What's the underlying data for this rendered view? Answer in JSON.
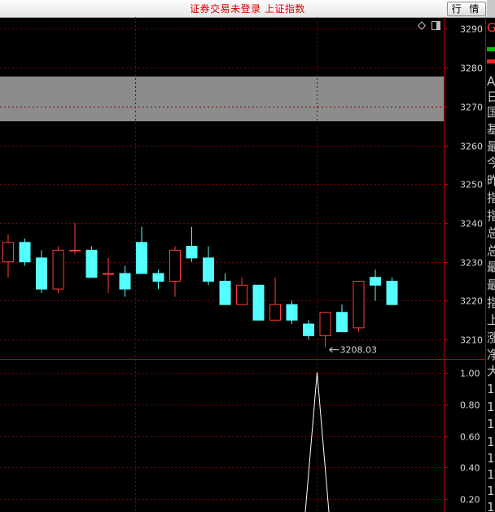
{
  "window": {
    "title": "证券交易未登录  上证指数",
    "quote_button": "行 情"
  },
  "colors": {
    "up": "#ff3c3c",
    "down": "#54ffff",
    "axis": "#c00000",
    "grid": "#7a0000",
    "label": "#d8d8d8",
    "band": "#8c8c8c",
    "indicator_line": "#ffffff"
  },
  "icons": [
    "diamond-icon",
    "panel-toggle-icon"
  ],
  "chart_data": [
    {
      "type": "candlestick",
      "y_ticks": [
        "3290",
        "3280",
        "3270",
        "3260",
        "3250",
        "3240",
        "3230",
        "3220",
        "3210"
      ],
      "ylim": [
        3205,
        3293
      ],
      "annotation": "3208.03",
      "candles": [
        {
          "o": 3230,
          "h": 3237,
          "l": 3226,
          "c": 3235
        },
        {
          "o": 3235,
          "h": 3236,
          "l": 3229,
          "c": 3230
        },
        {
          "o": 3231,
          "h": 3233,
          "l": 3222,
          "c": 3223
        },
        {
          "o": 3223,
          "h": 3234,
          "l": 3222,
          "c": 3233
        },
        {
          "o": 3233,
          "h": 3240,
          "l": 3232,
          "c": 3233
        },
        {
          "o": 3233,
          "h": 3234,
          "l": 3226,
          "c": 3226
        },
        {
          "o": 3227,
          "h": 3231,
          "l": 3222,
          "c": 3227
        },
        {
          "o": 3227,
          "h": 3229,
          "l": 3221,
          "c": 3223
        },
        {
          "o": 3235,
          "h": 3239,
          "l": 3227,
          "c": 3227
        },
        {
          "o": 3227,
          "h": 3228,
          "l": 3223,
          "c": 3225
        },
        {
          "o": 3225,
          "h": 3234,
          "l": 3221,
          "c": 3233
        },
        {
          "o": 3234,
          "h": 3239,
          "l": 3230,
          "c": 3231
        },
        {
          "o": 3231,
          "h": 3234,
          "l": 3224,
          "c": 3225
        },
        {
          "o": 3225,
          "h": 3227,
          "l": 3219,
          "c": 3219
        },
        {
          "o": 3219,
          "h": 3226,
          "l": 3219,
          "c": 3224
        },
        {
          "o": 3224,
          "h": 3224,
          "l": 3215,
          "c": 3215
        },
        {
          "o": 3215,
          "h": 3226,
          "l": 3215,
          "c": 3219
        },
        {
          "o": 3219,
          "h": 3220,
          "l": 3214,
          "c": 3215
        },
        {
          "o": 3214,
          "h": 3215,
          "l": 3210,
          "c": 3211
        },
        {
          "o": 3211,
          "h": 3217,
          "l": 3208,
          "c": 3217
        },
        {
          "o": 3217,
          "h": 3219,
          "l": 3212,
          "c": 3212
        },
        {
          "o": 3213,
          "h": 3225,
          "l": 3212,
          "c": 3225
        },
        {
          "o": 3226,
          "h": 3228,
          "l": 3220,
          "c": 3224
        },
        {
          "o": 3225,
          "h": 3226,
          "l": 3219,
          "c": 3219
        }
      ]
    },
    {
      "type": "line",
      "y_ticks": [
        "1.00",
        "0.80",
        "0.60",
        "0.40",
        "0.20"
      ],
      "ylim": [
        0.12,
        1.08
      ],
      "x": [
        0,
        1,
        2
      ],
      "values": [
        0.12,
        1.0,
        0.12
      ]
    }
  ],
  "side_text": [
    "G",
    "A",
    "日",
    "国",
    "基",
    "最",
    "今",
    "昨",
    "指",
    "指",
    "总",
    "总",
    "最",
    "最",
    "指",
    "上",
    "涨",
    "净",
    "大",
    "1",
    "1",
    "1",
    "1",
    "1",
    "1",
    "1",
    "1",
    "1"
  ]
}
